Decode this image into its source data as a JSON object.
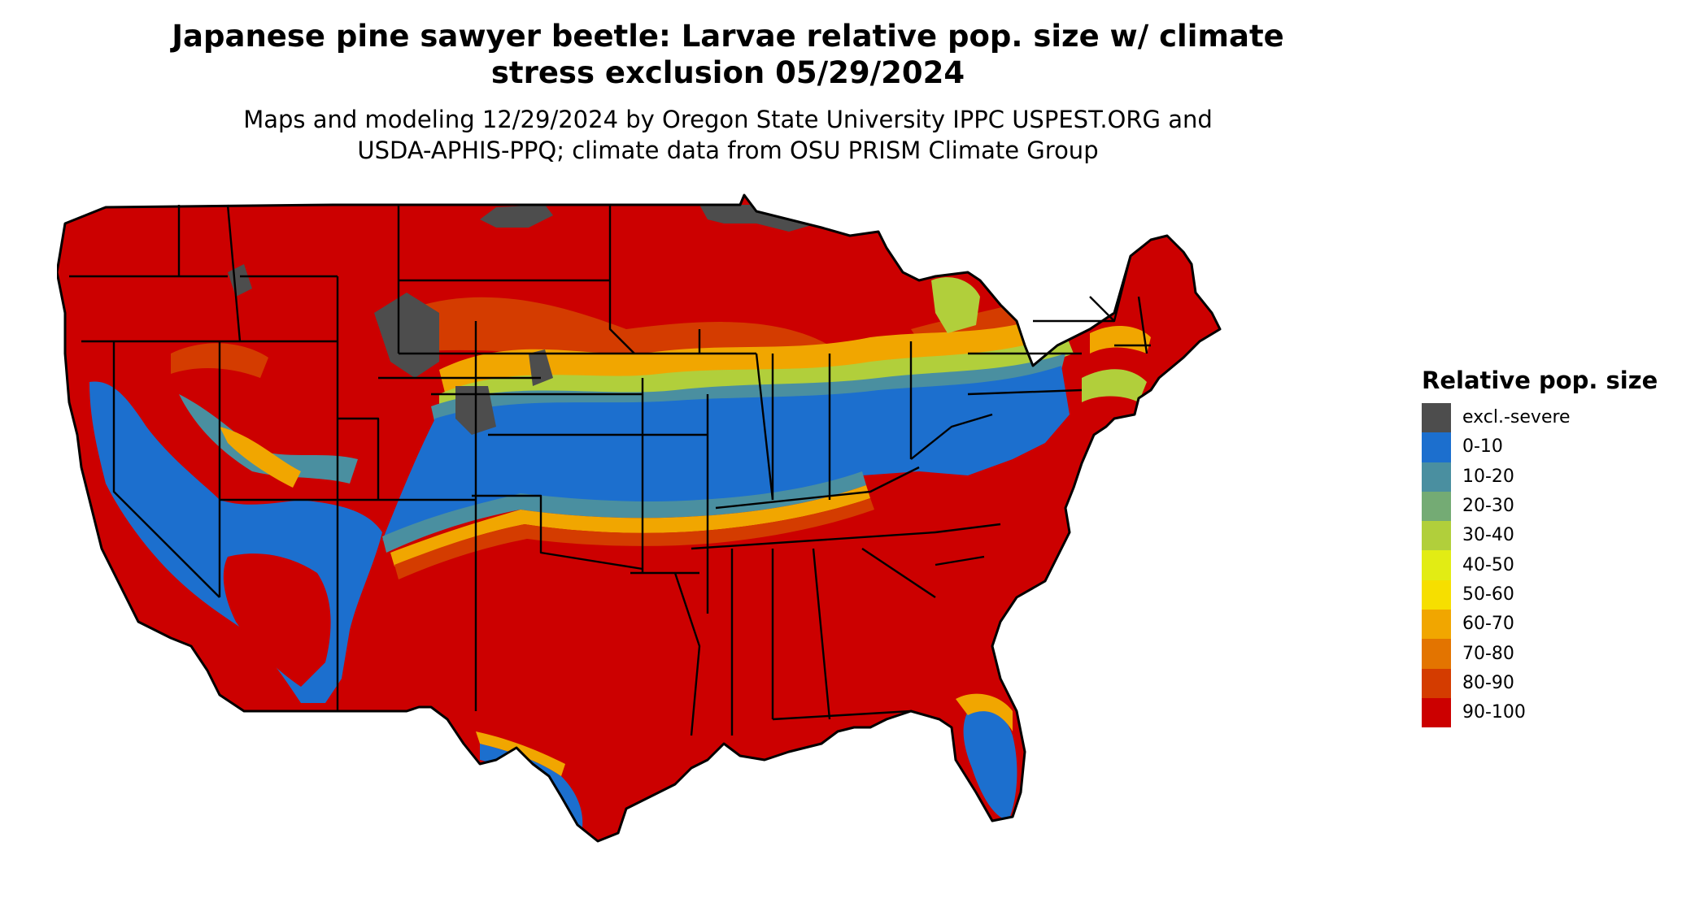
{
  "title": {
    "line1": "Japanese pine sawyer beetle: Larvae relative pop. size w/ climate",
    "line2": "stress exclusion 05/29/2024"
  },
  "subtitle": {
    "line1": "Maps and modeling 12/29/2024 by Oregon State University IPPC USPEST.ORG and",
    "line2": "USDA-APHIS-PPQ; climate data from OSU PRISM Climate Group"
  },
  "map": {
    "region": "Contiguous United States",
    "boundaries": "state outlines",
    "colors": {
      "state_border": "#000000",
      "background": "#ffffff"
    }
  },
  "legend": {
    "title": "Relative pop. size",
    "items": [
      {
        "label": "excl.-severe",
        "color": "#4d4d4d"
      },
      {
        "label": "0-10",
        "color": "#1c6fce"
      },
      {
        "label": "10-20",
        "color": "#4a8fa0"
      },
      {
        "label": "20-30",
        "color": "#74ab74"
      },
      {
        "label": "30-40",
        "color": "#b1cf3b"
      },
      {
        "label": "40-50",
        "color": "#e2ec14"
      },
      {
        "label": "50-60",
        "color": "#f6df00"
      },
      {
        "label": "60-70",
        "color": "#f1a600"
      },
      {
        "label": "70-80",
        "color": "#e37400"
      },
      {
        "label": "80-90",
        "color": "#d43c00"
      },
      {
        "label": "90-100",
        "color": "#cc0000"
      }
    ]
  }
}
